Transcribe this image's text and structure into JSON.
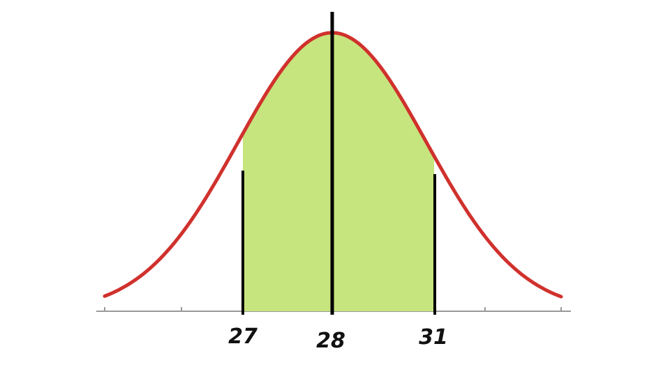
{
  "colors": {
    "curve": "#d0312d",
    "fill": "#c6e57e",
    "marker": "#000000",
    "axis": "#999999"
  },
  "chart_data": {
    "type": "area",
    "distribution": "normal",
    "mean": 28,
    "shaded_interval": [
      27,
      31
    ],
    "marked_values": [
      27,
      28,
      31
    ],
    "tick_labels": [
      "27",
      "28",
      "31"
    ]
  }
}
